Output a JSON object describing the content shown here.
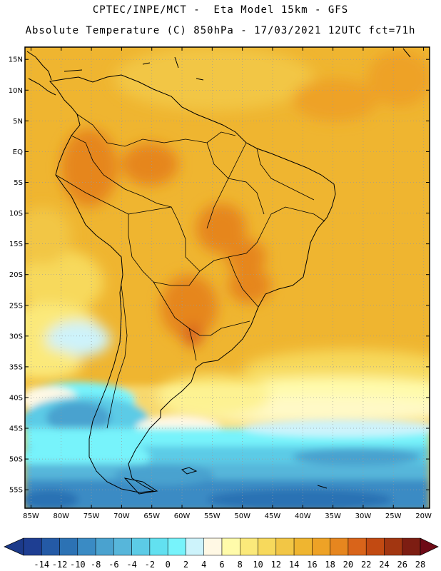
{
  "header": {
    "line1": "CPTEC/INPE/MCT -  Eta Model 15km - GFS",
    "line2": "Absolute Temperature (C) 850hPa - 17/03/2021 12UTC fct=71h"
  },
  "map": {
    "lon_range": [
      -86,
      -19
    ],
    "lat_range": [
      -58,
      17
    ],
    "lat_ticks": [
      "15N",
      "10N",
      "5N",
      "EQ",
      "5S",
      "10S",
      "15S",
      "20S",
      "25S",
      "30S",
      "35S",
      "40S",
      "45S",
      "50S",
      "55S"
    ],
    "lat_tick_values": [
      15,
      10,
      5,
      0,
      -5,
      -10,
      -15,
      -20,
      -25,
      -30,
      -35,
      -40,
      -45,
      -50,
      -55
    ],
    "lon_ticks": [
      "85W",
      "80W",
      "75W",
      "70W",
      "65W",
      "60W",
      "55W",
      "50W",
      "45W",
      "40W",
      "35W",
      "30W",
      "25W",
      "20W"
    ],
    "lon_tick_values": [
      -85,
      -80,
      -75,
      -70,
      -65,
      -60,
      -55,
      -50,
      -45,
      -40,
      -35,
      -30,
      -25,
      -20
    ],
    "gridlines": true
  },
  "colorbar": {
    "labels": [
      "-14",
      "-12",
      "-10",
      "-8",
      "-6",
      "-4",
      "-2",
      "0",
      "2",
      "4",
      "6",
      "8",
      "10",
      "12",
      "14",
      "16",
      "18",
      "20",
      "22",
      "24",
      "26",
      "28"
    ],
    "low_arrow_color": "#1c3a8a",
    "high_arrow_color": "#6e0a16",
    "colors": [
      "#1e3e92",
      "#245aa6",
      "#2c72b4",
      "#3a8bc4",
      "#4aa2cf",
      "#57b6da",
      "#5ccbe6",
      "#62e0f0",
      "#77f3fb",
      "#cdf3fb",
      "#fff8e4",
      "#fffbaa",
      "#fbe97a",
      "#f7d95c",
      "#f2c645",
      "#efb530",
      "#eea226",
      "#e6861f",
      "#d9641a",
      "#c24a12",
      "#a23611",
      "#7d1d12"
    ]
  }
}
